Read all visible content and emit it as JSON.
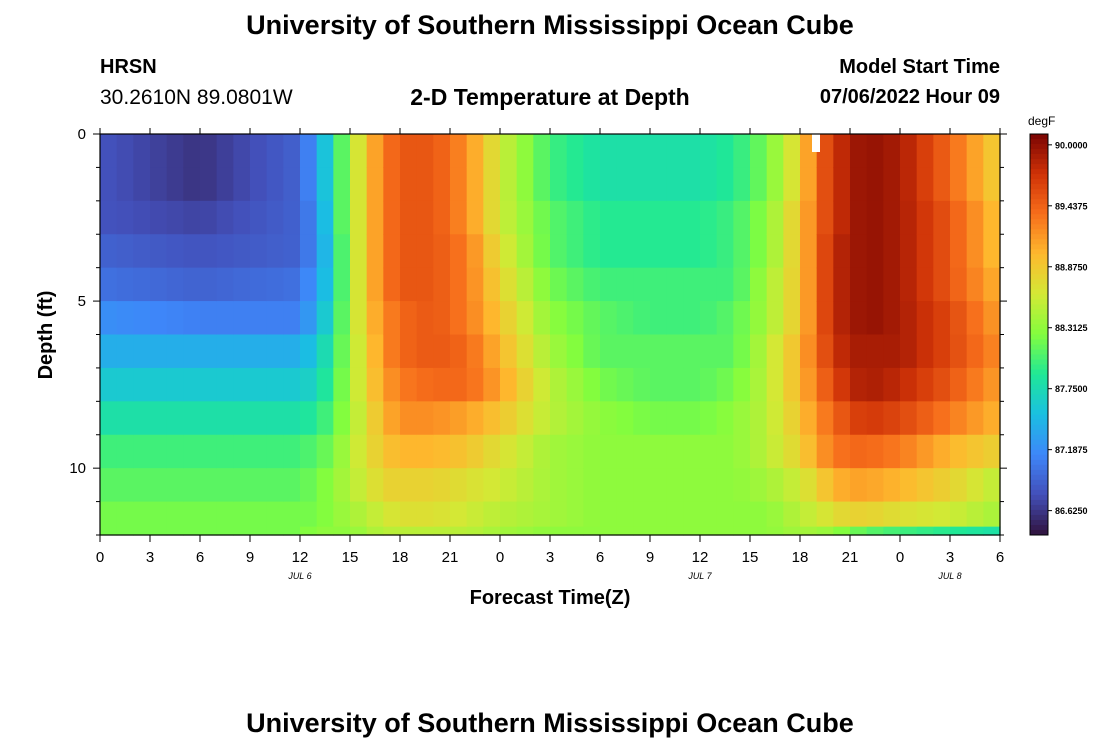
{
  "header": {
    "title": "University of Southern Mississippi Ocean Cube",
    "station": "HRSN",
    "coordinates": "30.2610N  89.0801W",
    "subtitle": "2-D Temperature at Depth",
    "model_start_label": "Model Start Time",
    "model_start_value": "07/06/2022 Hour 09"
  },
  "footer": {
    "title": "University of Southern Mississippi Ocean Cube"
  },
  "chart_data": {
    "type": "heatmap",
    "title": "2-D Temperature at Depth",
    "xlabel": "Forecast Time(Z)",
    "ylabel": "Depth (ft)",
    "x_ticks": [
      "0",
      "3",
      "6",
      "9",
      "12",
      "15",
      "18",
      "21",
      "0",
      "3",
      "6",
      "9",
      "12",
      "15",
      "18",
      "21",
      "0",
      "3",
      "6"
    ],
    "date_labels": [
      {
        "label": "JUL 6",
        "at_tick": 4
      },
      {
        "label": "JUL 7",
        "at_tick": 12
      },
      {
        "label": "JUL 8",
        "at_tick": 17
      }
    ],
    "y_ticks": [
      0,
      5,
      10
    ],
    "ylim": [
      0,
      12
    ],
    "xlim_hours": [
      0,
      54
    ],
    "colorbar": {
      "unit": "degF",
      "labels": [
        "90.0000",
        "89.4375",
        "88.8750",
        "88.3125",
        "87.7500",
        "87.1875",
        "86.6250"
      ],
      "range": [
        86.4,
        90.1
      ]
    },
    "depth_levels_ft": [
      0.5,
      1.5,
      2.5,
      3.5,
      4.5,
      5.5,
      6.5,
      7.5,
      8.5,
      9.5,
      10.5,
      11.5,
      12.0
    ],
    "column_hours": [
      0,
      6,
      12,
      13,
      14,
      15,
      16,
      17,
      18,
      20,
      22,
      24,
      27,
      30,
      33,
      36,
      38,
      40,
      42,
      43,
      44,
      45,
      46,
      48,
      51,
      54
    ],
    "values_degF": [
      [
        86.8,
        86.6,
        86.9,
        87.3,
        87.8,
        88.4,
        88.9,
        89.3,
        89.5,
        89.5,
        89.2,
        88.6,
        88.0,
        87.8,
        87.8,
        87.8,
        87.9,
        88.2,
        88.8,
        89.4,
        89.7,
        89.9,
        90.0,
        89.9,
        89.4,
        88.8
      ],
      [
        86.8,
        86.6,
        86.9,
        87.3,
        87.8,
        88.4,
        88.9,
        89.3,
        89.5,
        89.5,
        89.2,
        88.6,
        88.0,
        87.8,
        87.8,
        87.8,
        87.9,
        88.2,
        88.8,
        89.4,
        89.7,
        89.9,
        90.0,
        89.9,
        89.4,
        88.8
      ],
      [
        86.8,
        86.7,
        86.9,
        87.2,
        87.8,
        88.4,
        88.9,
        89.3,
        89.5,
        89.5,
        89.2,
        88.6,
        88.1,
        87.9,
        87.9,
        87.9,
        88.0,
        88.3,
        88.9,
        89.4,
        89.7,
        89.9,
        90.0,
        89.9,
        89.5,
        88.9
      ],
      [
        86.9,
        86.8,
        86.9,
        87.2,
        87.7,
        88.4,
        88.9,
        89.3,
        89.5,
        89.5,
        89.3,
        88.7,
        88.1,
        87.9,
        87.9,
        87.9,
        88.0,
        88.3,
        88.9,
        89.4,
        89.8,
        89.9,
        90.0,
        89.9,
        89.5,
        88.9
      ],
      [
        87.0,
        86.9,
        87.0,
        87.3,
        87.7,
        88.4,
        88.9,
        89.3,
        89.5,
        89.5,
        89.3,
        88.8,
        88.2,
        88.0,
        88.0,
        88.0,
        88.0,
        88.4,
        88.9,
        89.4,
        89.8,
        89.9,
        90.0,
        89.9,
        89.5,
        89.0
      ],
      [
        87.2,
        87.1,
        87.1,
        87.4,
        87.8,
        88.4,
        88.9,
        89.2,
        89.4,
        89.5,
        89.3,
        88.9,
        88.3,
        88.1,
        88.0,
        88.0,
        88.1,
        88.4,
        88.9,
        89.4,
        89.8,
        89.9,
        90.0,
        89.9,
        89.6,
        89.1
      ],
      [
        87.4,
        87.4,
        87.4,
        87.6,
        87.9,
        88.4,
        88.8,
        89.2,
        89.4,
        89.5,
        89.4,
        89.0,
        88.4,
        88.1,
        88.1,
        88.1,
        88.1,
        88.5,
        89.0,
        89.4,
        89.7,
        89.9,
        89.9,
        89.9,
        89.6,
        89.2
      ],
      [
        87.6,
        87.6,
        87.6,
        87.7,
        88.0,
        88.4,
        88.8,
        89.1,
        89.3,
        89.4,
        89.4,
        89.1,
        88.5,
        88.2,
        88.1,
        88.1,
        88.2,
        88.5,
        89.0,
        89.3,
        89.6,
        89.8,
        89.9,
        89.8,
        89.5,
        89.1
      ],
      [
        87.8,
        87.8,
        87.8,
        87.9,
        88.1,
        88.4,
        88.7,
        89.0,
        89.2,
        89.2,
        89.1,
        88.9,
        88.5,
        88.3,
        88.2,
        88.2,
        88.3,
        88.5,
        88.9,
        89.2,
        89.4,
        89.6,
        89.7,
        89.6,
        89.3,
        89.0
      ],
      [
        88.0,
        88.0,
        88.0,
        88.1,
        88.2,
        88.5,
        88.7,
        88.9,
        89.0,
        89.0,
        88.9,
        88.7,
        88.4,
        88.3,
        88.3,
        88.3,
        88.3,
        88.5,
        88.8,
        89.1,
        89.3,
        89.4,
        89.4,
        89.3,
        89.0,
        88.8
      ],
      [
        88.1,
        88.1,
        88.1,
        88.2,
        88.3,
        88.5,
        88.6,
        88.8,
        88.8,
        88.8,
        88.7,
        88.6,
        88.4,
        88.3,
        88.3,
        88.3,
        88.3,
        88.4,
        88.6,
        88.8,
        89.0,
        89.1,
        89.1,
        89.0,
        88.8,
        88.5
      ],
      [
        88.2,
        88.2,
        88.2,
        88.2,
        88.3,
        88.4,
        88.5,
        88.6,
        88.7,
        88.7,
        88.6,
        88.5,
        88.4,
        88.3,
        88.3,
        88.3,
        88.3,
        88.3,
        88.5,
        88.6,
        88.7,
        88.8,
        88.8,
        88.7,
        88.6,
        88.4
      ],
      [
        88.2,
        88.2,
        88.2,
        88.3,
        88.3,
        88.3,
        88.4,
        88.5,
        88.5,
        88.5,
        88.5,
        88.4,
        88.3,
        88.3,
        88.3,
        88.3,
        88.3,
        88.3,
        88.4,
        88.4,
        88.3,
        88.2,
        88.1,
        88.0,
        87.9,
        87.8
      ]
    ]
  }
}
